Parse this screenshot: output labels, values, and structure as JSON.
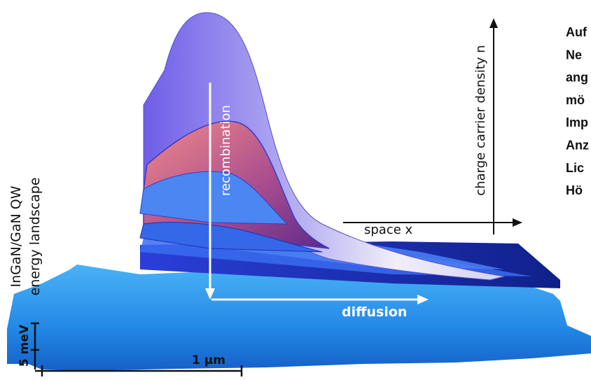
{
  "figure": {
    "labels": {
      "recombination": "recombination",
      "density_axis": "charge carrier density n",
      "space_axis": "space x",
      "diffusion": "diffusion",
      "landscape_line1": "InGaN/GaN QW",
      "landscape_line2": "energy landscape",
      "energy_scale": "5 meV",
      "length_scale": "1 µm"
    },
    "side_text": {
      "lines": [
        "Auf",
        "Ne",
        "ang",
        "mö",
        "Imp",
        "Anz",
        "Lic",
        "Hö"
      ]
    }
  }
}
